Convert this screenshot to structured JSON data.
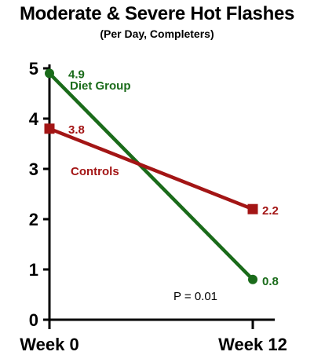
{
  "chart_data": {
    "type": "line",
    "title": "Moderate & Severe Hot Flashes",
    "subtitle": "(Per Day, Completers)",
    "categories": [
      "Week 0",
      "Week 12"
    ],
    "ylim": [
      0,
      5
    ],
    "yticks": [
      "0",
      "1",
      "2",
      "3",
      "4",
      "5"
    ],
    "grid": false,
    "series": [
      {
        "name": "Diet Group",
        "values": [
          4.9,
          0.8
        ],
        "labels": [
          "4.9",
          "0.8"
        ],
        "color": "#1a6b1a",
        "marker": "circle"
      },
      {
        "name": "Controls",
        "values": [
          3.8,
          2.2
        ],
        "labels": [
          "3.8",
          "2.2"
        ],
        "color": "#a31515",
        "marker": "square"
      }
    ],
    "annotation": "P = 0.01"
  }
}
